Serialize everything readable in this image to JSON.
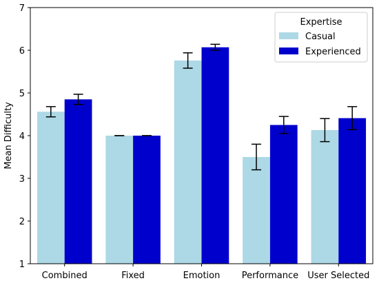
{
  "chart_data": {
    "type": "bar",
    "categories": [
      "Combined",
      "Fixed",
      "Emotion",
      "Performance",
      "User Selected"
    ],
    "ylabel": "Mean Difficulty",
    "xlabel": "",
    "ylim": [
      1,
      7
    ],
    "yticks": [
      1,
      2,
      3,
      4,
      5,
      6,
      7
    ],
    "grid": false,
    "legend": {
      "title": "Expertise",
      "placement": "top-right"
    },
    "series": [
      {
        "name": "Casual",
        "color": "#add8e6",
        "values": [
          4.56,
          4.0,
          5.76,
          3.5,
          4.13
        ],
        "error": [
          0.12,
          0.0,
          0.18,
          0.3,
          0.27
        ]
      },
      {
        "name": "Experienced",
        "color": "#0000cd",
        "values": [
          4.85,
          4.0,
          6.07,
          4.25,
          4.41
        ],
        "error": [
          0.12,
          0.0,
          0.07,
          0.2,
          0.27
        ]
      }
    ]
  }
}
